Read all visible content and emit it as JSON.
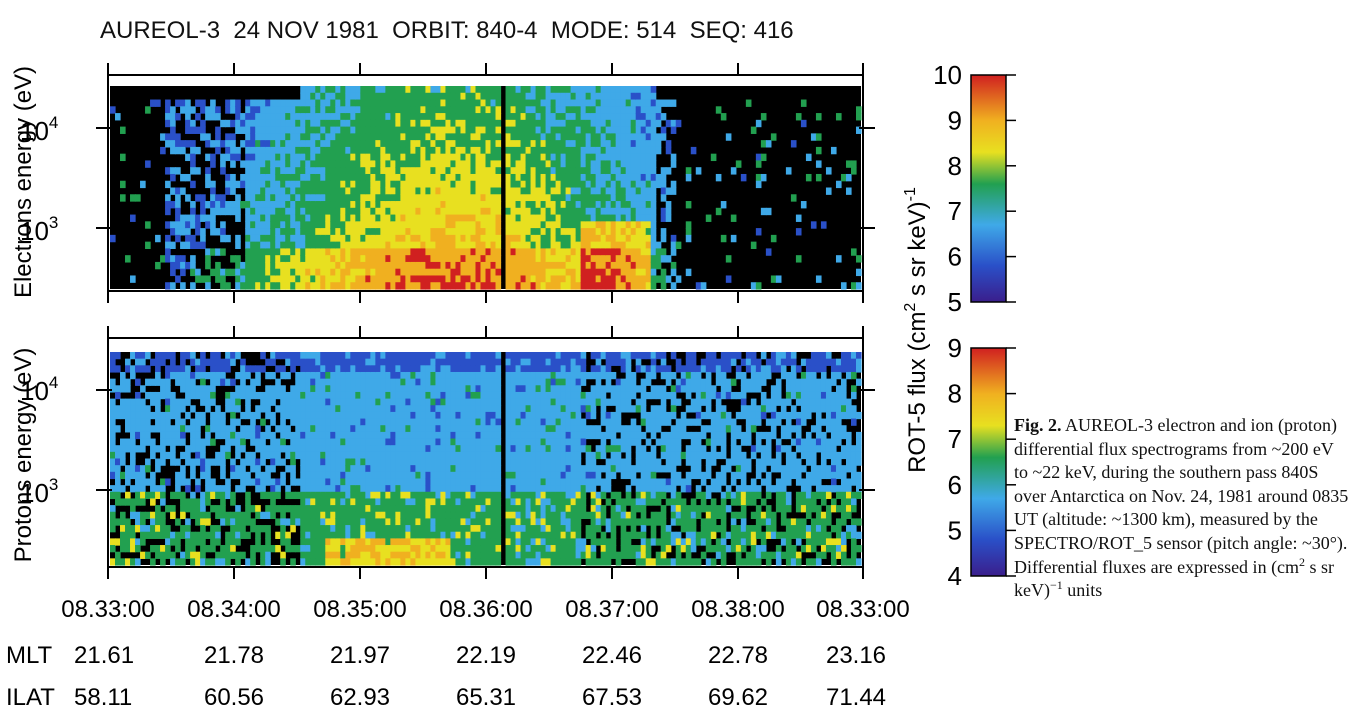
{
  "chart_data": {
    "type": "heatmap",
    "title": "AUREOL-3  24 NOV 1981  ORBIT: 840-4  MODE: 514  SEQ: 416",
    "x_ticks": [
      "08.33:00",
      "08.34:00",
      "08.35:00",
      "08.36:00",
      "08.37:00",
      "08.38:00",
      "08.33:00"
    ],
    "aux_rows": [
      {
        "label": "MLT",
        "values": [
          "21.61",
          "21.78",
          "21.97",
          "22.19",
          "22.46",
          "22.78",
          "23.16"
        ]
      },
      {
        "label": "ILAT",
        "values": [
          "58.11",
          "60.56",
          "62.93",
          "65.31",
          "67.53",
          "69.62",
          "71.44"
        ]
      }
    ],
    "panels": [
      {
        "name": "electrons",
        "ylabel": "Electrons energy (eV)",
        "yscale": "log",
        "ylim": [
          200,
          22000
        ],
        "yticks": [
          {
            "base": "10",
            "exp": "3",
            "value": 1000
          },
          {
            "base": "10",
            "exp": "4",
            "value": 10000
          }
        ],
        "colorbar": {
          "range": [
            5,
            10
          ],
          "ticks": [
            "5",
            "6",
            "7",
            "8",
            "9",
            "10"
          ]
        }
      },
      {
        "name": "protons",
        "ylabel": "Protons energy (eV)",
        "yscale": "log",
        "ylim": [
          200,
          22000
        ],
        "yticks": [
          {
            "base": "10",
            "exp": "3",
            "value": 1000
          },
          {
            "base": "10",
            "exp": "4",
            "value": 10000
          }
        ],
        "colorbar": {
          "range": [
            4,
            9
          ],
          "ticks": [
            "4",
            "5",
            "6",
            "7",
            "8",
            "9"
          ]
        }
      }
    ],
    "colorbar_label": {
      "text": "ROT-5 flux (cm",
      "sup": "2",
      "rest": " s sr keV)",
      "sup2": "-1"
    },
    "grid": false
  },
  "caption": {
    "bold": "Fig. 2.",
    "parts": [
      " AUREOL-3 electron and ion (proton) differential flux spectrograms from ~200 eV to ~22 keV, during the southern pass 840S over Antarctica on Nov. 24, 1981 around 0835 UT (altitude: ~1300 km), measured by the SPECTRO/ROT_5 sensor (pitch angle: ~30°). Differential fluxes are expressed in (cm",
      "2",
      " s sr keV)",
      "−1",
      " units"
    ]
  },
  "colors": {
    "scale": [
      "#3a1e8c",
      "#2a50c8",
      "#3fa9e8",
      "#22a050",
      "#e8e020",
      "#f0b020",
      "#d02020"
    ],
    "background": "#000000"
  }
}
